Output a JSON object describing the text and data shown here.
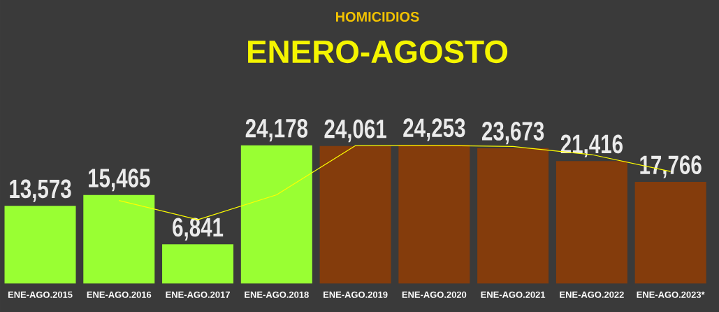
{
  "chart_data": {
    "type": "bar",
    "title": "HOMICIDIOS",
    "subtitle": "ENERO-AGOSTO",
    "categories": [
      "ENE-AGO.2015",
      "ENE-AGO.2016",
      "ENE-AGO.2017",
      "ENE-AGO.2018",
      "ENE-AGO.2019",
      "ENE-AGO.2020",
      "ENE-AGO.2021",
      "ENE-AGO.2022",
      "ENE-AGO.2023*"
    ],
    "series": [
      {
        "colors": [
          "#99ff33",
          "#99ff33",
          "#99ff33",
          "#99ff33",
          "#843c0c",
          "#843c0c",
          "#843c0c",
          "#843c0c",
          "#843c0c"
        ],
        "values": [
          13573,
          15465,
          6841,
          24178,
          24061,
          24253,
          23673,
          21416,
          17766
        ],
        "value_labels": [
          "13,573",
          "15,465",
          "6,841",
          "24,178",
          "24,061",
          "24,253",
          "23,673",
          "21,416",
          "17,766"
        ]
      },
      {
        "type": "line",
        "color": "#ffff00",
        "values": [
          null,
          14519,
          11153,
          15510,
          24120,
          24157,
          23963,
          22545,
          19591
        ]
      }
    ]
  }
}
